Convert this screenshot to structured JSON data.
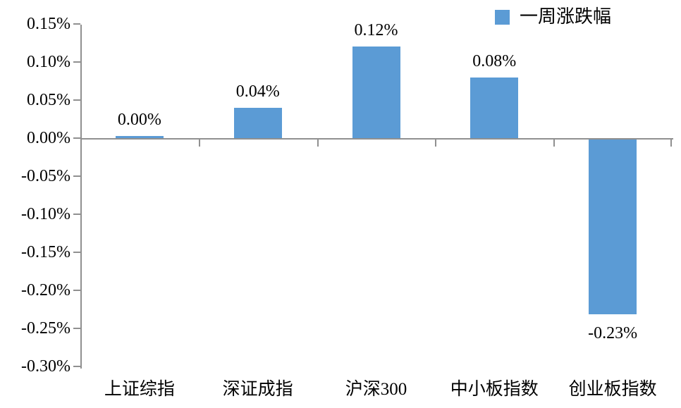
{
  "chart_data": {
    "type": "bar",
    "title": "",
    "legend": {
      "label": "一周涨跌幅",
      "position": "top-right"
    },
    "series": [
      {
        "name": "一周涨跌幅",
        "values": [
          0.0,
          0.04,
          0.12,
          0.08,
          -0.23
        ],
        "data_labels": [
          "0.00%",
          "0.04%",
          "0.12%",
          "0.08%",
          "-0.23%"
        ]
      }
    ],
    "categories": [
      "上证综指",
      "深证成指",
      "沪深300",
      "中小板指数",
      "创业板指数"
    ],
    "xlabel": "",
    "ylabel": "",
    "ylim": [
      -0.3,
      0.15
    ],
    "ytick_step": 0.05,
    "yticks": [
      {
        "value": 0.15,
        "label": "0.15%"
      },
      {
        "value": 0.1,
        "label": "0.10%"
      },
      {
        "value": 0.05,
        "label": "0.05%"
      },
      {
        "value": 0.0,
        "label": "0.00%"
      },
      {
        "value": -0.05,
        "label": "-0.05%"
      },
      {
        "value": -0.1,
        "label": "-0.10%"
      },
      {
        "value": -0.15,
        "label": "-0.15%"
      },
      {
        "value": -0.2,
        "label": "-0.20%"
      },
      {
        "value": -0.25,
        "label": "-0.25%"
      },
      {
        "value": -0.3,
        "label": "-0.30%"
      }
    ],
    "grid": false,
    "colors": {
      "bar": "#5B9BD5",
      "axis": "#909090",
      "text": "#000000",
      "background": "#FFFFFF"
    }
  }
}
